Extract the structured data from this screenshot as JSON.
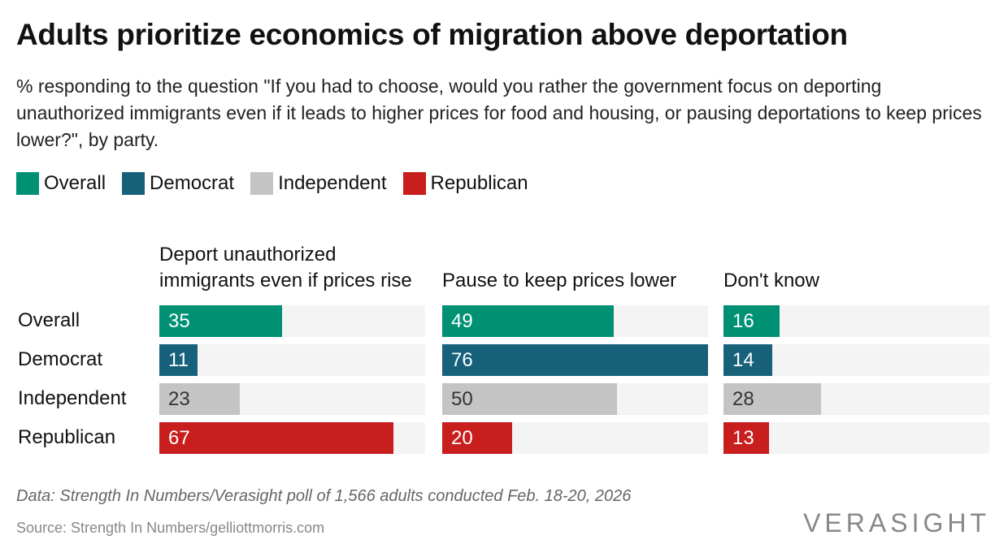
{
  "chart_data": {
    "type": "bar",
    "title": "Adults prioritize economics of migration above deportation",
    "subtitle": "% responding to the question \"If you had to choose, would you rather the government focus on deporting unauthorized immigrants even if it leads to higher prices for food and housing, or pausing deportations to keep prices lower?\", by party.",
    "legend": [
      {
        "name": "Overall",
        "color": "#009175"
      },
      {
        "name": "Democrat",
        "color": "#17617b"
      },
      {
        "name": "Independent",
        "color": "#c4c4c4"
      },
      {
        "name": "Republican",
        "color": "#c81e1e"
      }
    ],
    "categories": [
      "Overall",
      "Democrat",
      "Independent",
      "Republican"
    ],
    "series": [
      {
        "name": "Deport unauthorized immigrants even if prices rise",
        "values": [
          35,
          11,
          23,
          67
        ]
      },
      {
        "name": "Pause to keep prices lower",
        "values": [
          49,
          76,
          50,
          20
        ]
      },
      {
        "name": "Don't know",
        "values": [
          16,
          14,
          28,
          13
        ]
      }
    ],
    "xlim": [
      0,
      76
    ]
  },
  "footer": {
    "note": "Data: Strength In Numbers/Verasight poll of 1,566 adults conducted Feb. 18-20, 2026",
    "source": "Source: Strength In Numbers/gelliottmorris.com",
    "logo": "VERASIGHT"
  }
}
